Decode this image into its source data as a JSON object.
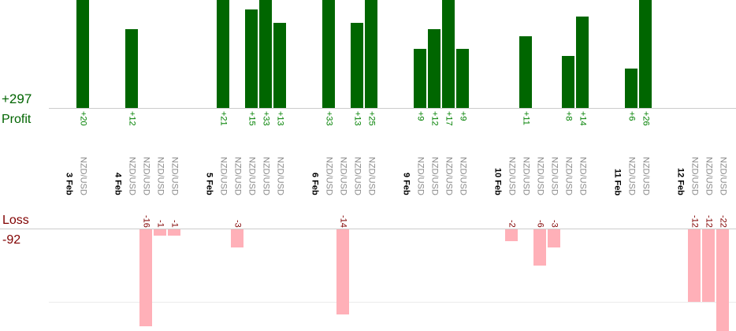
{
  "left_labels": {
    "profit_total": "+297",
    "profit_caption": "Profit",
    "loss_caption": "Loss",
    "loss_total": "-92"
  },
  "colors": {
    "profit_bar": "#006600",
    "profit_value_text": "#008000",
    "profit_caption_text": "#006400",
    "loss_bar": "#ffb0b8",
    "loss_text": "#800000",
    "date_text": "#000000",
    "symbol_text": "#8a8a8a",
    "gridline": "#cccccc"
  },
  "chart_data": {
    "type": "bar",
    "title": "",
    "description": "Per-trade profit (green, up) and loss (pink, down) bars grouped by date; rotated value labels at bar bases, rotated date and symbol labels between the two baselines",
    "profit_total": 297,
    "loss_total": -92,
    "legend": "none",
    "grid": "two horizontal baselines (profit top, loss bottom)",
    "groups": [
      {
        "date": "3 Feb",
        "trades": [
          {
            "symbol": "NZD/USD",
            "value": 20
          }
        ]
      },
      {
        "date": "4 Feb",
        "trades": [
          {
            "symbol": "NZD/USD",
            "value": 12
          },
          {
            "symbol": "NZD/USD",
            "value": -16
          },
          {
            "symbol": "NZD/USD",
            "value": -1
          },
          {
            "symbol": "NZD/USD",
            "value": -1
          }
        ]
      },
      {
        "date": "5 Feb",
        "trades": [
          {
            "symbol": "NZD/USD",
            "value": 21
          },
          {
            "symbol": "NZD/USD",
            "value": -3
          },
          {
            "symbol": "NZD/USD",
            "value": 15
          },
          {
            "symbol": "NZD/USD",
            "value": 33
          },
          {
            "symbol": "NZD/USD",
            "value": 13
          }
        ]
      },
      {
        "date": "6 Feb",
        "trades": [
          {
            "symbol": "NZD/USD",
            "value": 33
          },
          {
            "symbol": "NZD/USD",
            "value": -14
          },
          {
            "symbol": "NZD/USD",
            "value": 13
          },
          {
            "symbol": "NZD/USD",
            "value": 25
          }
        ]
      },
      {
        "date": "9 Feb",
        "trades": [
          {
            "symbol": "NZD/USD",
            "value": 9
          },
          {
            "symbol": "NZD/USD",
            "value": 12
          },
          {
            "symbol": "NZD/USD",
            "value": 17
          },
          {
            "symbol": "NZD/USD",
            "value": 9
          }
        ]
      },
      {
        "date": "10 Feb",
        "trades": [
          {
            "symbol": "NZD/USD",
            "value": -2
          },
          {
            "symbol": "NZD/USD",
            "value": 11
          },
          {
            "symbol": "NZD/USD",
            "value": -6
          },
          {
            "symbol": "NZD/USD",
            "value": -3
          },
          {
            "symbol": "NZD/USD",
            "value": 8
          },
          {
            "symbol": "NZD/USD",
            "value": 14
          }
        ]
      },
      {
        "date": "11 Feb",
        "trades": [
          {
            "symbol": "NZD/USD",
            "value": 6
          },
          {
            "symbol": "NZD/USD",
            "value": 26
          }
        ]
      },
      {
        "date": "12 Feb",
        "trades": [
          {
            "symbol": "NZD/USD",
            "value": -12
          },
          {
            "symbol": "NZD/USD",
            "value": -12
          },
          {
            "symbol": "NZD/USD",
            "value": -22
          }
        ]
      }
    ]
  }
}
